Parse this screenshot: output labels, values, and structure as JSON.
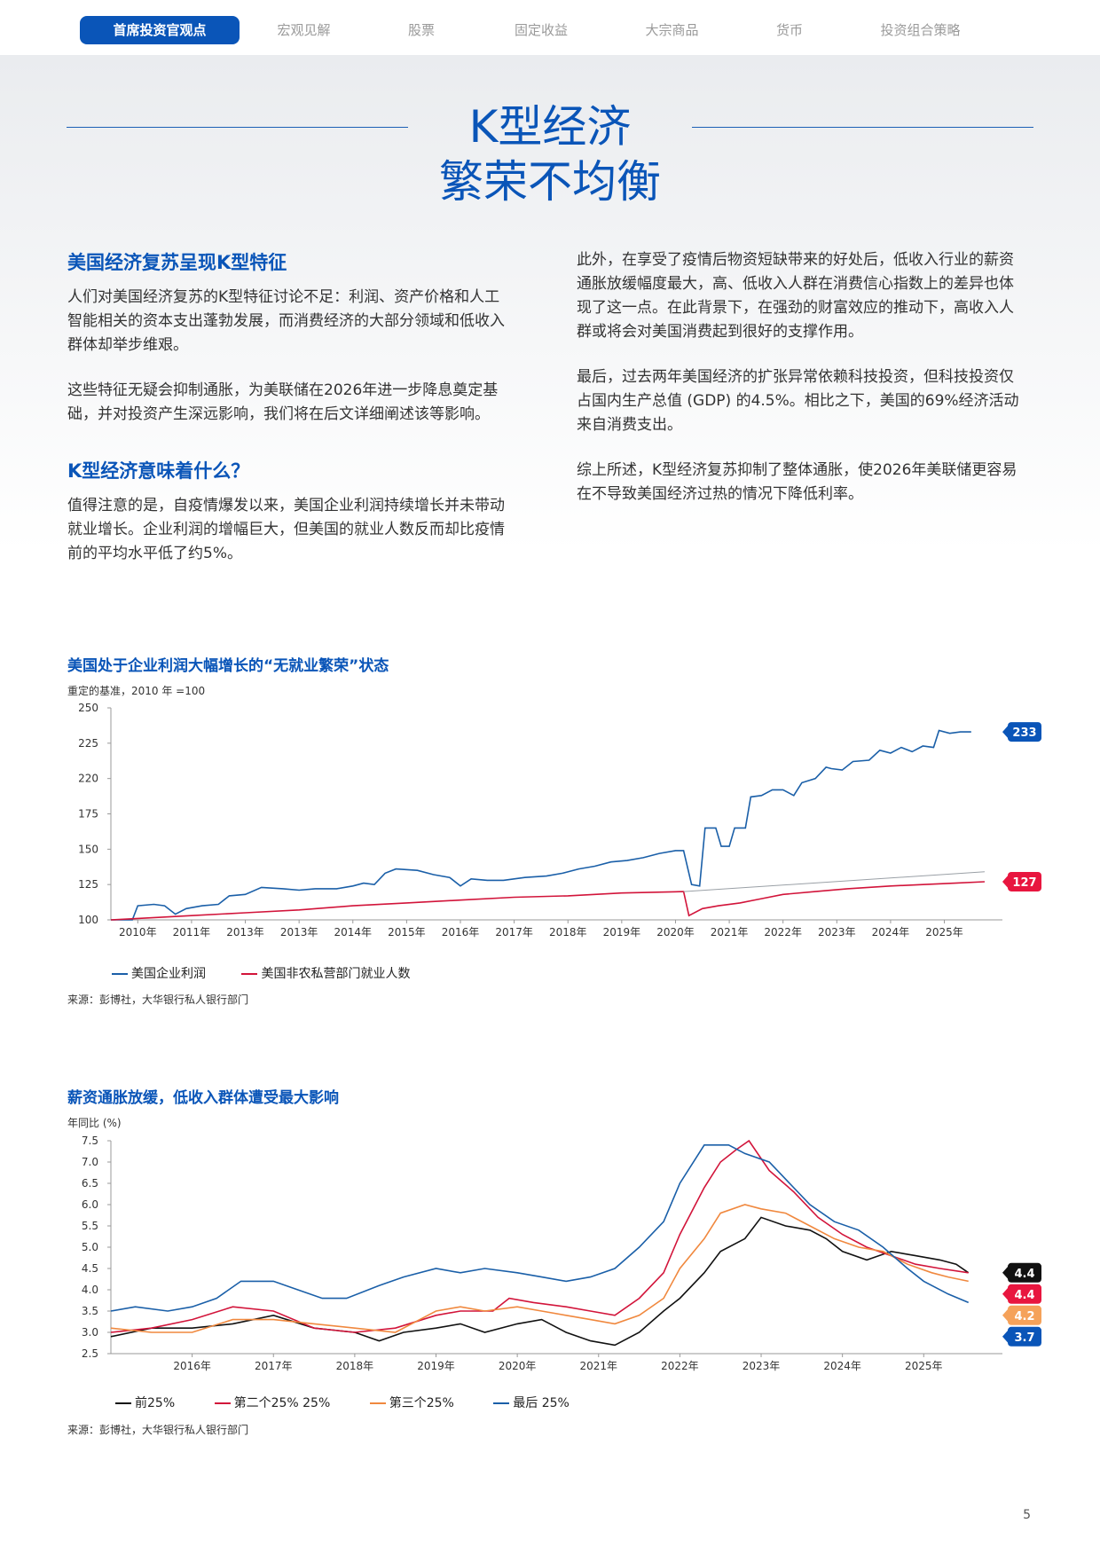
{
  "nav": {
    "tabs": [
      "首席投资官观点",
      "宏观见解",
      "股票",
      "固定收益",
      "大宗商品",
      "货币",
      "投资组合策略"
    ],
    "active_index": 0,
    "accent": "#0a55b8"
  },
  "hero": {
    "title_line1": "K型经济",
    "title_line2": "繁荣不均衡"
  },
  "left": {
    "h1": "美国经济复苏呈现K型特征",
    "p1": "人们对美国经济复苏的K型特征讨论不足：利润、资产价格和人工智能相关的资本支出蓬勃发展，而消费经济的大部分领域和低收入群体却举步维艰。",
    "p2": "这些特征无疑会抑制通胀，为美联储在2026年进一步降息奠定基础，并对投资产生深远影响，我们将在后文详细阐述该等影响。",
    "h2": "K型经济意味着什么？",
    "p3": "值得注意的是，自疫情爆发以来，美国企业利润持续增长并未带动就业增长。企业利润的增幅巨大，但美国的就业人数反而却比疫情前的平均水平低了约5%。"
  },
  "right": {
    "p1": "此外，在享受了疫情后物资短缺带来的好处后，低收入行业的薪资通胀放缓幅度最大，高、低收入人群在消费信心指数上的差异也体现了这一点。在此背景下，在强劲的财富效应的推动下，高收入人群或将会对美国消费起到很好的支撑作用。",
    "p2": "最后，过去两年美国经济的扩张异常依赖科技投资，但科技投资仅占国内生产总值 (GDP) 的4.5%。相比之下，美国的69%经济活动来自消费支出。",
    "p3": "综上所述，K型经济复苏抑制了整体通胀，使2026年美联储更容易在不导致美国经济过热的情况下降低利率。"
  },
  "chart_data": [
    {
      "type": "line",
      "title": "美国处于企业利润大幅增长的“无就业繁荣”状态",
      "ylabel": "重定的基准，2010 年 =100",
      "yticks": [
        "250",
        "225",
        "220",
        "175",
        "150",
        "125",
        "100"
      ],
      "ylim": [
        100,
        250
      ],
      "xticks": [
        "2010年",
        "2011年",
        "2013年",
        "2013年",
        "2014年",
        "2015年",
        "2016年",
        "2017年",
        "2018年",
        "2019年",
        "2020年",
        "2021年",
        "2022年",
        "2023年",
        "2024年",
        "2025年"
      ],
      "xlim": [
        2009.5,
        2025.75
      ],
      "series": [
        {
          "name": "美国企业利润",
          "color": "#1a5fa8",
          "end_label": "233",
          "end_label_color": "#0a55b8",
          "points": [
            [
              2009.5,
              100
            ],
            [
              2009.9,
              100
            ],
            [
              2010.0,
              110
            ],
            [
              2010.3,
              111
            ],
            [
              2010.5,
              110
            ],
            [
              2010.7,
              104
            ],
            [
              2010.9,
              108
            ],
            [
              2011.2,
              110
            ],
            [
              2011.5,
              111
            ],
            [
              2011.7,
              117
            ],
            [
              2012.0,
              118
            ],
            [
              2012.3,
              123
            ],
            [
              2012.7,
              122
            ],
            [
              2013.0,
              121
            ],
            [
              2013.3,
              122
            ],
            [
              2013.7,
              122
            ],
            [
              2014.0,
              124
            ],
            [
              2014.2,
              126
            ],
            [
              2014.4,
              125
            ],
            [
              2014.6,
              133
            ],
            [
              2014.8,
              136
            ],
            [
              2015.2,
              135
            ],
            [
              2015.5,
              132
            ],
            [
              2015.8,
              130
            ],
            [
              2016.0,
              124
            ],
            [
              2016.2,
              129
            ],
            [
              2016.5,
              128
            ],
            [
              2016.8,
              128
            ],
            [
              2017.2,
              130
            ],
            [
              2017.6,
              131
            ],
            [
              2017.9,
              133
            ],
            [
              2018.2,
              136
            ],
            [
              2018.5,
              138
            ],
            [
              2018.8,
              141
            ],
            [
              2019.1,
              142
            ],
            [
              2019.4,
              144
            ],
            [
              2019.7,
              147
            ],
            [
              2020.0,
              149
            ],
            [
              2020.15,
              149
            ],
            [
              2020.3,
              125
            ],
            [
              2020.45,
              124
            ],
            [
              2020.55,
              165
            ],
            [
              2020.75,
              165
            ],
            [
              2020.85,
              152
            ],
            [
              2021.0,
              152
            ],
            [
              2021.1,
              165
            ],
            [
              2021.3,
              165
            ],
            [
              2021.4,
              187
            ],
            [
              2021.6,
              188
            ],
            [
              2021.8,
              192
            ],
            [
              2022.0,
              192
            ],
            [
              2022.2,
              188
            ],
            [
              2022.35,
              197
            ],
            [
              2022.6,
              200
            ],
            [
              2022.8,
              208
            ],
            [
              2022.9,
              207
            ],
            [
              2023.1,
              206
            ],
            [
              2023.3,
              212
            ],
            [
              2023.6,
              213
            ],
            [
              2023.8,
              220
            ],
            [
              2024.0,
              218
            ],
            [
              2024.2,
              222
            ],
            [
              2024.4,
              219
            ],
            [
              2024.6,
              223
            ],
            [
              2024.8,
              222
            ],
            [
              2024.9,
              234
            ],
            [
              2025.1,
              232
            ],
            [
              2025.3,
              233
            ],
            [
              2025.5,
              233
            ]
          ]
        },
        {
          "name": "美国非农私营部门就业人数",
          "color": "#d2143a",
          "end_label": "127",
          "end_label_color": "#e8163f",
          "points": [
            [
              2009.5,
              100
            ],
            [
              2010.0,
              101
            ],
            [
              2011.0,
              103
            ],
            [
              2012.0,
              105
            ],
            [
              2013.0,
              107
            ],
            [
              2014.0,
              110
            ],
            [
              2015.0,
              112
            ],
            [
              2016.0,
              114
            ],
            [
              2017.0,
              116
            ],
            [
              2018.0,
              117
            ],
            [
              2019.0,
              119
            ],
            [
              2020.15,
              120
            ],
            [
              2020.25,
              103
            ],
            [
              2020.5,
              108
            ],
            [
              2020.8,
              110
            ],
            [
              2021.2,
              112
            ],
            [
              2021.6,
              115
            ],
            [
              2022.0,
              118
            ],
            [
              2022.6,
              120
            ],
            [
              2023.2,
              122
            ],
            [
              2024.0,
              124
            ],
            [
              2024.6,
              125
            ],
            [
              2025.2,
              126
            ],
            [
              2025.75,
              127
            ]
          ]
        },
        {
          "name": "trend",
          "color": "#9aa0a6",
          "points": [
            [
              2020.15,
              120
            ],
            [
              2025.75,
              134
            ]
          ]
        }
      ],
      "legend": [
        "美国企业利润",
        "美国非农私营部门就业人数"
      ],
      "source": "来源：彭博社，大华银行私人银行部门"
    },
    {
      "type": "line",
      "title": "薪资通胀放缓，低收入群体遭受最大影响",
      "ylabel": "年同比 (%)",
      "yticks": [
        "7.5",
        "7.0",
        "6.5",
        "6.0",
        "5.5",
        "5.0",
        "4.5",
        "4.0",
        "3.5",
        "3.0",
        "2.5"
      ],
      "ylim": [
        2.5,
        7.5
      ],
      "xticks": [
        "2016年",
        "2017年",
        "2018年",
        "2019年",
        "2020年",
        "2021年",
        "2022年",
        "2023年",
        "2024年",
        "2025年"
      ],
      "xlim": [
        2015.0,
        2025.75
      ],
      "series": [
        {
          "name": "前25%",
          "color": "#111111",
          "end_label": "4.4",
          "end_label_color": "#111111",
          "points": [
            [
              2015.0,
              2.9
            ],
            [
              2015.5,
              3.1
            ],
            [
              2016.0,
              3.1
            ],
            [
              2016.5,
              3.2
            ],
            [
              2017.0,
              3.4
            ],
            [
              2017.5,
              3.1
            ],
            [
              2018.0,
              3.0
            ],
            [
              2018.3,
              2.8
            ],
            [
              2018.6,
              3.0
            ],
            [
              2019.0,
              3.1
            ],
            [
              2019.3,
              3.2
            ],
            [
              2019.6,
              3.0
            ],
            [
              2020.0,
              3.2
            ],
            [
              2020.3,
              3.3
            ],
            [
              2020.6,
              3.0
            ],
            [
              2020.9,
              2.8
            ],
            [
              2021.2,
              2.7
            ],
            [
              2021.5,
              3.0
            ],
            [
              2021.8,
              3.5
            ],
            [
              2022.0,
              3.8
            ],
            [
              2022.3,
              4.4
            ],
            [
              2022.5,
              4.9
            ],
            [
              2022.8,
              5.2
            ],
            [
              2023.0,
              5.7
            ],
            [
              2023.3,
              5.5
            ],
            [
              2023.6,
              5.4
            ],
            [
              2023.8,
              5.2
            ],
            [
              2024.0,
              4.9
            ],
            [
              2024.3,
              4.7
            ],
            [
              2024.6,
              4.9
            ],
            [
              2024.9,
              4.8
            ],
            [
              2025.2,
              4.7
            ],
            [
              2025.4,
              4.6
            ],
            [
              2025.55,
              4.4
            ]
          ]
        },
        {
          "name": "第二个25% 25%",
          "color": "#d2143a",
          "end_label": "4.4",
          "end_label_color": "#e8163f",
          "points": [
            [
              2015.0,
              3.0
            ],
            [
              2015.5,
              3.1
            ],
            [
              2016.0,
              3.3
            ],
            [
              2016.5,
              3.6
            ],
            [
              2017.0,
              3.5
            ],
            [
              2017.5,
              3.1
            ],
            [
              2018.0,
              3.0
            ],
            [
              2018.5,
              3.1
            ],
            [
              2019.0,
              3.4
            ],
            [
              2019.3,
              3.5
            ],
            [
              2019.7,
              3.5
            ],
            [
              2019.9,
              3.8
            ],
            [
              2020.2,
              3.7
            ],
            [
              2020.6,
              3.6
            ],
            [
              2020.9,
              3.5
            ],
            [
              2021.2,
              3.4
            ],
            [
              2021.5,
              3.8
            ],
            [
              2021.8,
              4.4
            ],
            [
              2022.0,
              5.3
            ],
            [
              2022.3,
              6.4
            ],
            [
              2022.5,
              7.0
            ],
            [
              2022.7,
              7.3
            ],
            [
              2022.85,
              7.5
            ],
            [
              2023.1,
              6.8
            ],
            [
              2023.4,
              6.3
            ],
            [
              2023.7,
              5.7
            ],
            [
              2024.0,
              5.3
            ],
            [
              2024.3,
              5.0
            ],
            [
              2024.6,
              4.8
            ],
            [
              2024.9,
              4.6
            ],
            [
              2025.2,
              4.5
            ],
            [
              2025.55,
              4.4
            ]
          ]
        },
        {
          "name": "第三个25%",
          "color": "#f0883e",
          "end_label": "4.2",
          "end_label_color": "#f5a25a",
          "points": [
            [
              2015.0,
              3.1
            ],
            [
              2015.5,
              3.0
            ],
            [
              2016.0,
              3.0
            ],
            [
              2016.5,
              3.3
            ],
            [
              2017.0,
              3.3
            ],
            [
              2017.5,
              3.2
            ],
            [
              2018.0,
              3.1
            ],
            [
              2018.5,
              3.0
            ],
            [
              2018.8,
              3.3
            ],
            [
              2019.0,
              3.5
            ],
            [
              2019.3,
              3.6
            ],
            [
              2019.6,
              3.5
            ],
            [
              2020.0,
              3.6
            ],
            [
              2020.3,
              3.5
            ],
            [
              2020.6,
              3.4
            ],
            [
              2020.9,
              3.3
            ],
            [
              2021.2,
              3.2
            ],
            [
              2021.5,
              3.4
            ],
            [
              2021.8,
              3.8
            ],
            [
              2022.0,
              4.5
            ],
            [
              2022.3,
              5.2
            ],
            [
              2022.5,
              5.8
            ],
            [
              2022.8,
              6.0
            ],
            [
              2023.0,
              5.9
            ],
            [
              2023.3,
              5.8
            ],
            [
              2023.6,
              5.5
            ],
            [
              2023.9,
              5.2
            ],
            [
              2024.2,
              5.0
            ],
            [
              2024.5,
              4.9
            ],
            [
              2024.8,
              4.6
            ],
            [
              2025.1,
              4.4
            ],
            [
              2025.3,
              4.3
            ],
            [
              2025.55,
              4.2
            ]
          ]
        },
        {
          "name": "最后 25%",
          "color": "#1a5fa8",
          "end_label": "3.7",
          "end_label_color": "#0a55b8",
          "points": [
            [
              2015.0,
              3.5
            ],
            [
              2015.3,
              3.6
            ],
            [
              2015.7,
              3.5
            ],
            [
              2016.0,
              3.6
            ],
            [
              2016.3,
              3.8
            ],
            [
              2016.6,
              4.2
            ],
            [
              2017.0,
              4.2
            ],
            [
              2017.3,
              4.0
            ],
            [
              2017.6,
              3.8
            ],
            [
              2017.9,
              3.8
            ],
            [
              2018.3,
              4.1
            ],
            [
              2018.6,
              4.3
            ],
            [
              2019.0,
              4.5
            ],
            [
              2019.3,
              4.4
            ],
            [
              2019.6,
              4.5
            ],
            [
              2020.0,
              4.4
            ],
            [
              2020.3,
              4.3
            ],
            [
              2020.6,
              4.2
            ],
            [
              2020.9,
              4.3
            ],
            [
              2021.2,
              4.5
            ],
            [
              2021.5,
              5.0
            ],
            [
              2021.8,
              5.6
            ],
            [
              2022.0,
              6.5
            ],
            [
              2022.3,
              7.4
            ],
            [
              2022.6,
              7.4
            ],
            [
              2022.8,
              7.2
            ],
            [
              2023.1,
              7.0
            ],
            [
              2023.3,
              6.6
            ],
            [
              2023.6,
              6.0
            ],
            [
              2023.9,
              5.6
            ],
            [
              2024.2,
              5.4
            ],
            [
              2024.5,
              5.0
            ],
            [
              2024.8,
              4.5
            ],
            [
              2025.0,
              4.2
            ],
            [
              2025.3,
              3.9
            ],
            [
              2025.55,
              3.7
            ]
          ]
        }
      ],
      "legend": [
        "前25%",
        "第二个25% 25%",
        "第三个25%",
        "最后 25%"
      ],
      "source": "来源：彭博社，大华银行私人银行部门"
    }
  ],
  "page_number": "5"
}
